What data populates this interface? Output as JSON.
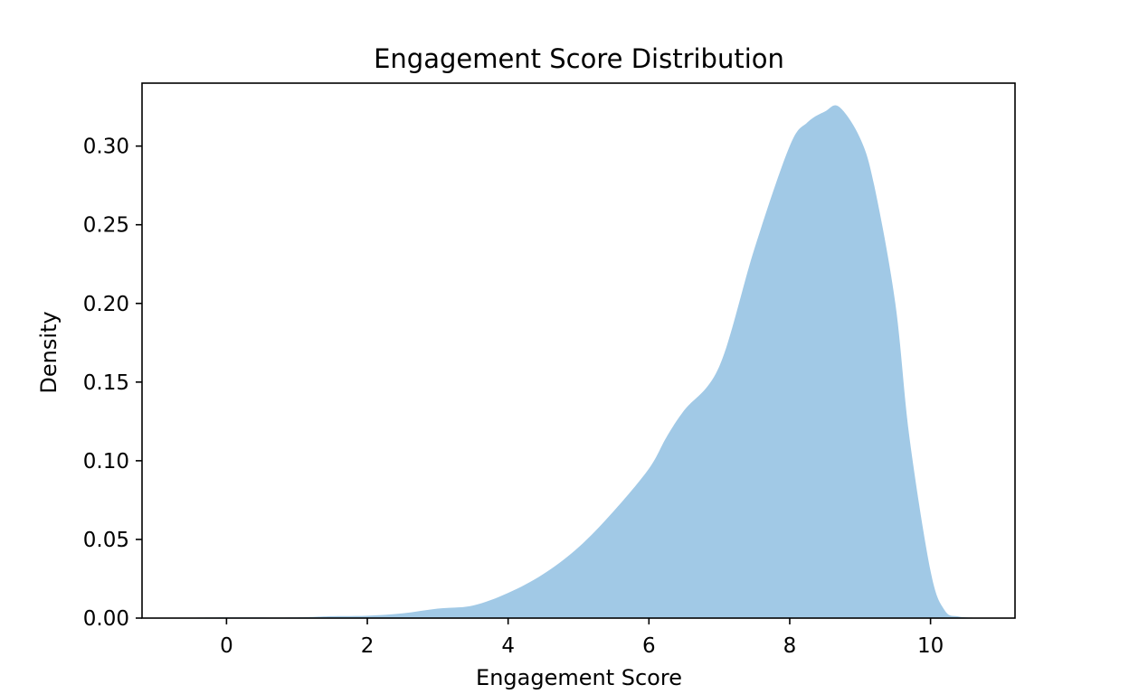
{
  "chart_data": {
    "type": "area",
    "title": "Engagement Score Distribution",
    "xlabel": "Engagement Score",
    "ylabel": "Density",
    "xlim": [
      -1.2,
      11.2
    ],
    "ylim": [
      0.0,
      0.34
    ],
    "x_ticks": [
      0,
      2,
      4,
      6,
      8,
      10
    ],
    "x_tick_labels": [
      "0",
      "2",
      "4",
      "6",
      "8",
      "10"
    ],
    "y_ticks": [
      0.0,
      0.05,
      0.1,
      0.15,
      0.2,
      0.25,
      0.3
    ],
    "y_tick_labels": [
      "0.00",
      "0.05",
      "0.10",
      "0.15",
      "0.20",
      "0.25",
      "0.30"
    ],
    "grid": false,
    "fill_color": "#a1c9e6",
    "series": [
      {
        "x": [
          -0.6,
          0.0,
          1.0,
          1.5,
          2.0,
          2.5,
          3.0,
          3.5,
          4.0,
          4.5,
          5.0,
          5.5,
          6.0,
          6.25,
          6.5,
          7.0,
          7.5,
          8.0,
          8.25,
          8.5,
          8.7,
          9.0,
          9.2,
          9.5,
          9.7,
          10.0,
          10.2,
          10.4,
          10.7
        ],
        "y": [
          0.0002,
          0.0005,
          0.0005,
          0.0012,
          0.0015,
          0.003,
          0.006,
          0.008,
          0.016,
          0.028,
          0.045,
          0.068,
          0.095,
          0.115,
          0.132,
          0.16,
          0.235,
          0.3,
          0.315,
          0.322,
          0.325,
          0.305,
          0.275,
          0.2,
          0.115,
          0.03,
          0.005,
          0.001,
          0.0002
        ]
      }
    ]
  }
}
